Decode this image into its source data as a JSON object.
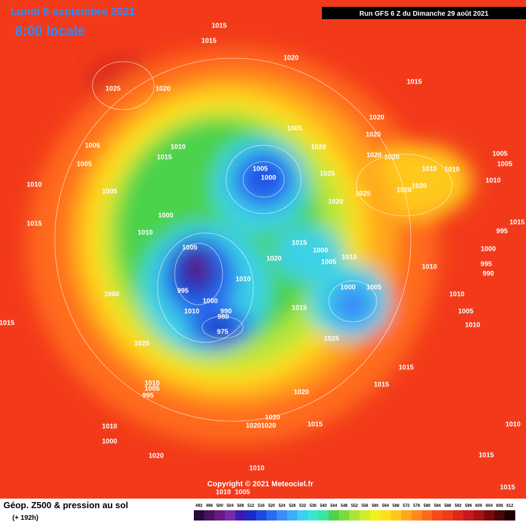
{
  "header": {
    "date": "Lundi 6 septembre 2021",
    "time": "8:00 locale",
    "run": "Run GFS 6 Z du Dimanche 29 août 2021"
  },
  "map": {
    "pressure_labels": [
      1015,
      1015,
      1020,
      1025,
      1020,
      1015,
      1020,
      1020,
      1005,
      1020,
      1005,
      1010,
      1015,
      1005,
      1020,
      1020,
      1005,
      1005,
      1005,
      1000,
      1010,
      1010,
      1025,
      1010,
      1005,
      1025,
      1020,
      1020,
      1010,
      1020,
      1000,
      1015,
      1010,
      1015,
      995,
      1005,
      1015,
      1000,
      1010,
      1005,
      1020,
      1000,
      995,
      990,
      1010,
      1010,
      1000,
      1005,
      995,
      1000,
      1000,
      1010,
      1005,
      1010,
      1015,
      990,
      980,
      975,
      1010,
      1015,
      1025,
      1020,
      1015,
      1015,
      1010,
      1005,
      995,
      1020,
      1020,
      1020,
      1020,
      1015,
      1010,
      1000,
      1010,
      1020,
      1015,
      1010,
      1010,
      1005,
      1015
    ]
  },
  "footer": {
    "copyright": "Copyright © 2021 Meteociel.fr",
    "title": "Géop. Z500 & pression au sol",
    "lead": "(+ 192h)"
  },
  "legend": {
    "labels": [
      492,
      496,
      500,
      504,
      508,
      512,
      516,
      520,
      524,
      528,
      532,
      536,
      540,
      544,
      548,
      552,
      556,
      560,
      564,
      568,
      572,
      576,
      580,
      584,
      588,
      592,
      596,
      600,
      604,
      608,
      612
    ],
    "colors": [
      "#2a0a3a",
      "#4a125e",
      "#6a1a82",
      "#7a2aa8",
      "#3a1ab4",
      "#1a2ac8",
      "#1a4ae0",
      "#2a6cf0",
      "#3a8cf8",
      "#3aaef8",
      "#3ad2f0",
      "#3ae6d2",
      "#3ae6a0",
      "#4cd24c",
      "#7adc3a",
      "#a8e63a",
      "#d2ee2a",
      "#f0f01a",
      "#ffe01a",
      "#ffc81a",
      "#ffa81a",
      "#ff8a1a",
      "#ff6a1a",
      "#f84a1a",
      "#f03a1a",
      "#dc2a1a",
      "#c81a1a",
      "#a81212",
      "#7a0a0a",
      "#4a0606",
      "#1a0202"
    ]
  }
}
